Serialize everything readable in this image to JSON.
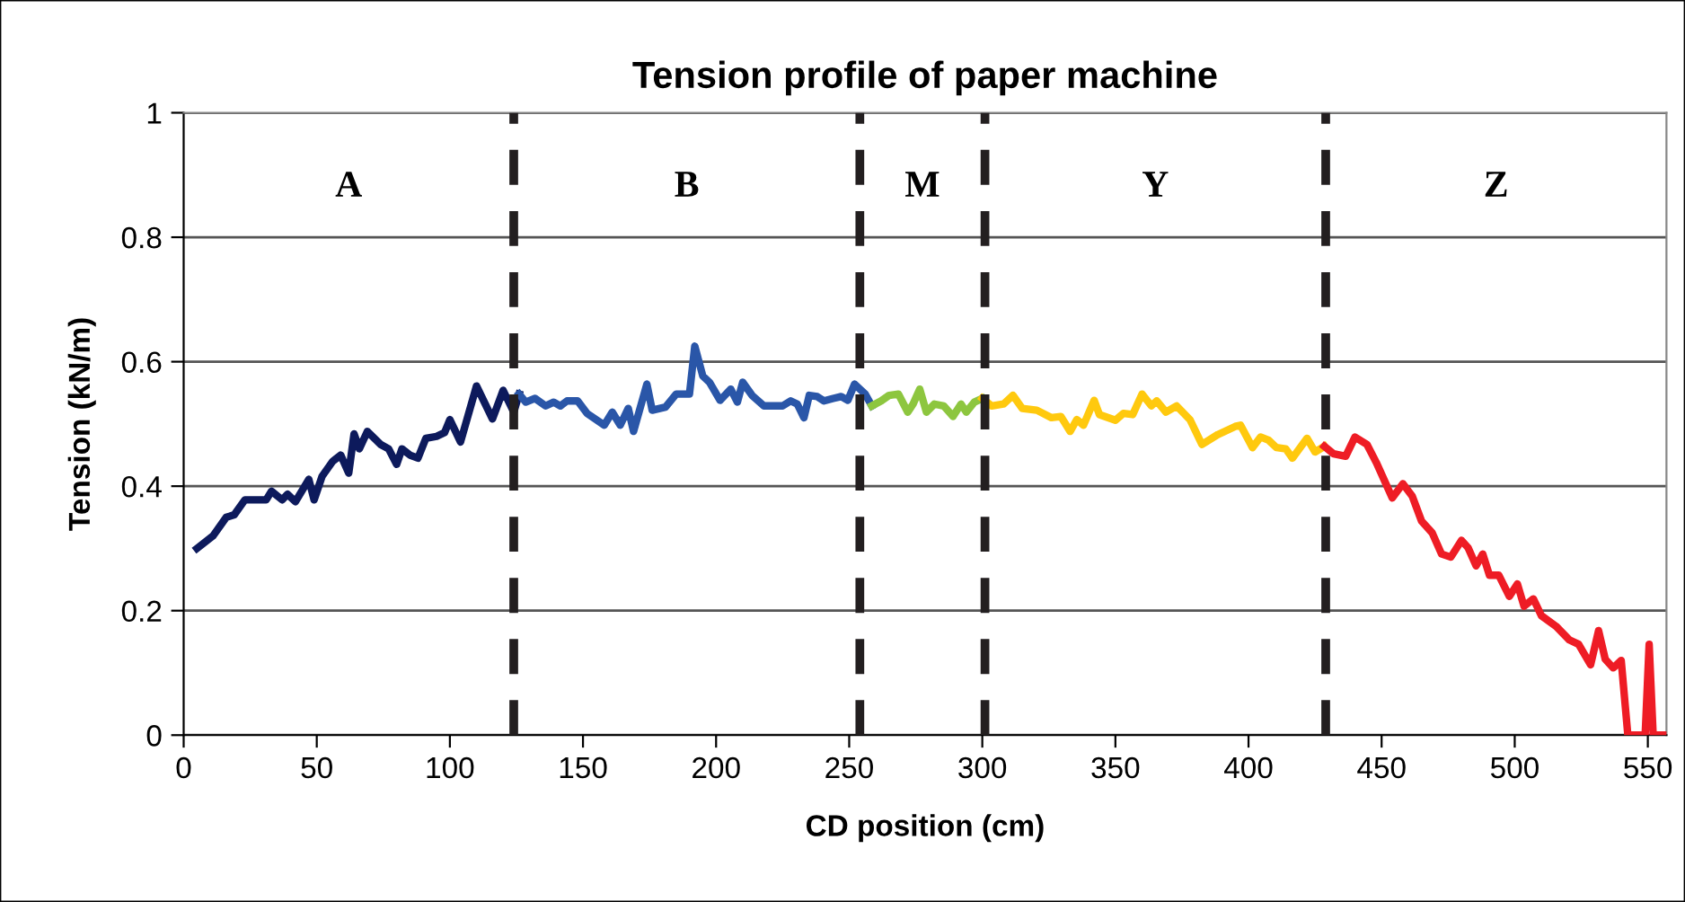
{
  "chart_data": {
    "type": "line",
    "title": "Tension profile of paper machine",
    "xlabel": "CD position (cm)",
    "ylabel": "Tension (kN/m)",
    "xlim": [
      0,
      557
    ],
    "xticks": [
      0,
      50,
      100,
      150,
      200,
      250,
      300,
      350,
      400,
      450,
      500,
      550
    ],
    "ylim": [
      0,
      1
    ],
    "yticks": [
      0,
      0.2,
      0.4,
      0.6,
      0.8,
      1
    ],
    "grid": "y",
    "legend": false,
    "marker": "none",
    "line_style": "solid",
    "series": [
      {
        "color": "#0d1a5c",
        "x": [
          5,
          11,
          16,
          19,
          23,
          31,
          33,
          37,
          39,
          42,
          47,
          49,
          52,
          56,
          59,
          62,
          64,
          66,
          69,
          74,
          77,
          80,
          82,
          85,
          88,
          91,
          95,
          98,
          100,
          104,
          110,
          116,
          120,
          124,
          126
        ],
        "values": [
          0.3,
          0.32,
          0.35,
          0.354,
          0.378,
          0.378,
          0.392,
          0.378,
          0.387,
          0.375,
          0.411,
          0.378,
          0.416,
          0.44,
          0.45,
          0.421,
          0.484,
          0.46,
          0.488,
          0.467,
          0.46,
          0.435,
          0.46,
          0.45,
          0.445,
          0.477,
          0.48,
          0.486,
          0.507,
          0.471,
          0.561,
          0.508,
          0.554,
          0.519,
          0.548
        ]
      },
      {
        "color": "#2a56a8",
        "x": [
          126,
          128.5,
          132,
          136,
          139,
          141.5,
          144,
          148,
          151.5,
          158,
          161,
          164,
          167,
          169,
          174,
          176,
          181,
          185,
          190,
          192,
          195,
          197.5,
          201.5,
          205.5,
          208,
          210,
          213.5,
          218,
          225,
          228,
          230.5,
          233,
          235,
          238,
          240.5,
          244,
          247,
          249.5,
          252,
          256,
          258.5
        ],
        "values": [
          0.548,
          0.535,
          0.541,
          0.529,
          0.535,
          0.529,
          0.537,
          0.537,
          0.517,
          0.498,
          0.519,
          0.498,
          0.525,
          0.488,
          0.564,
          0.522,
          0.527,
          0.548,
          0.548,
          0.625,
          0.577,
          0.567,
          0.538,
          0.556,
          0.535,
          0.567,
          0.546,
          0.529,
          0.529,
          0.537,
          0.532,
          0.51,
          0.546,
          0.544,
          0.537,
          0.541,
          0.544,
          0.538,
          0.564,
          0.548,
          0.529
        ]
      },
      {
        "color": "#8dc63f",
        "x": [
          258.5,
          262,
          265,
          268.5,
          272,
          274,
          276.5,
          279,
          282,
          285.5,
          289,
          292,
          294,
          297,
          300
        ],
        "values": [
          0.529,
          0.537,
          0.546,
          0.548,
          0.519,
          0.532,
          0.556,
          0.519,
          0.532,
          0.529,
          0.512,
          0.532,
          0.519,
          0.535,
          0.541
        ]
      },
      {
        "color": "#ffc90e",
        "x": [
          300,
          303.5,
          308,
          311.5,
          315,
          320.5,
          326,
          329.5,
          333,
          335.5,
          338,
          342,
          344,
          350,
          353,
          356.5,
          360,
          363.5,
          365.5,
          369,
          373,
          378,
          382.5,
          388.5,
          395,
          397,
          401.5,
          404.5,
          407.5,
          410.5,
          414,
          416.5,
          422,
          425,
          428.5
        ],
        "values": [
          0.541,
          0.529,
          0.532,
          0.546,
          0.525,
          0.522,
          0.51,
          0.512,
          0.488,
          0.507,
          0.498,
          0.538,
          0.515,
          0.506,
          0.517,
          0.515,
          0.548,
          0.529,
          0.537,
          0.519,
          0.529,
          0.507,
          0.467,
          0.483,
          0.496,
          0.498,
          0.462,
          0.479,
          0.474,
          0.462,
          0.46,
          0.445,
          0.477,
          0.455,
          0.464
        ]
      },
      {
        "color": "#ee1c25",
        "x": [
          428.5,
          432,
          436.5,
          440,
          444.5,
          448,
          454,
          458,
          461.5,
          465,
          469,
          472.5,
          476,
          480,
          482.5,
          485.5,
          488,
          490.5,
          494,
          498,
          501,
          503.5,
          507,
          510,
          515.5,
          520.5,
          524,
          528.5,
          531.5,
          534,
          537,
          540,
          542.5,
          549,
          550.5,
          552,
          556
        ],
        "values": [
          0.464,
          0.452,
          0.448,
          0.479,
          0.467,
          0.438,
          0.381,
          0.404,
          0.384,
          0.344,
          0.325,
          0.291,
          0.286,
          0.313,
          0.301,
          0.272,
          0.291,
          0.257,
          0.257,
          0.223,
          0.243,
          0.207,
          0.219,
          0.192,
          0.175,
          0.153,
          0.146,
          0.113,
          0.168,
          0.122,
          0.108,
          0.12,
          0,
          0,
          0.146,
          0,
          0
        ]
      }
    ],
    "ref_lines": [
      {
        "axis": "x",
        "value": 124,
        "color": "#231f20",
        "line_style": "dashed"
      },
      {
        "axis": "x",
        "value": 254,
        "color": "#231f20",
        "line_style": "dashed"
      },
      {
        "axis": "x",
        "value": 301,
        "color": "#231f20",
        "line_style": "dashed"
      },
      {
        "axis": "x",
        "value": 429,
        "color": "#231f20",
        "line_style": "dashed"
      }
    ],
    "annotations": [
      "A",
      "B",
      "M",
      "Y",
      "Z"
    ]
  }
}
